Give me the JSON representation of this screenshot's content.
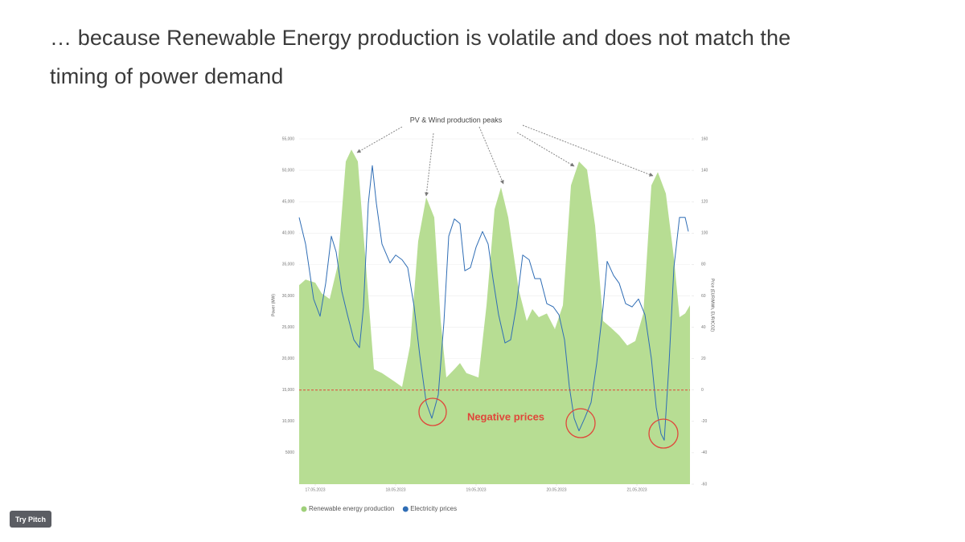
{
  "slide": {
    "heading": [
      "… because Renewable Energy production is volatile and does not match the",
      "timing of power demand"
    ],
    "button": "Try Pitch"
  },
  "chart_data": {
    "type": "combo",
    "xticks": [
      {
        "value": 0,
        "label": "17.05.2023"
      },
      {
        "value": 1,
        "label": "18.05.2023"
      },
      {
        "value": 2,
        "label": "19.05.2023"
      },
      {
        "value": 3,
        "label": "20.05.2023"
      },
      {
        "value": 4,
        "label": "21.05.2023"
      }
    ],
    "xlim": [
      -0.2,
      4.66
    ],
    "ylabel": "Power (MW)",
    "y2label": "Price (EUR/MWh, EUR/tCO2)",
    "ylim": [
      0,
      55000
    ],
    "yticks": [
      5000,
      {
        "value": 10000,
        "label": "10,000"
      },
      {
        "value": 15000,
        "label": "15,000"
      },
      {
        "value": 20000,
        "label": "20,000"
      },
      {
        "value": 25000,
        "label": "25,000"
      },
      {
        "value": 30000,
        "label": "30,000"
      },
      {
        "value": 35000,
        "label": "35,000"
      },
      {
        "value": 40000,
        "label": "40,000"
      },
      {
        "value": 45000,
        "label": "45,000"
      },
      {
        "value": 50000,
        "label": "50,000"
      },
      {
        "value": 55000,
        "label": "55,000"
      }
    ],
    "y2lim": [
      -60,
      160
    ],
    "y2ticks": [
      -60,
      -40,
      -20,
      0,
      20,
      40,
      60,
      80,
      100,
      120,
      140,
      160
    ],
    "grid": true,
    "series": [
      {
        "name": "Renewable energy production",
        "type": "area",
        "color": "#b7dd93",
        "legend_color": "#9fd07a",
        "x": [
          -0.2,
          -0.12,
          0,
          0.08,
          0.18,
          0.28,
          0.38,
          0.45,
          0.53,
          0.63,
          0.73,
          0.83,
          0.98,
          1.08,
          1.18,
          1.28,
          1.38,
          1.48,
          1.56,
          1.63,
          1.73,
          1.8,
          1.88,
          2.03,
          2.13,
          2.23,
          2.31,
          2.4,
          2.53,
          2.63,
          2.7,
          2.78,
          2.88,
          2.98,
          3.08,
          3.18,
          3.28,
          3.38,
          3.48,
          3.58,
          3.68,
          3.78,
          3.88,
          3.98,
          4.08,
          4.18,
          4.26,
          4.36,
          4.46,
          4.53,
          4.6,
          4.66
        ],
        "values": [
          31700,
          32600,
          32100,
          30400,
          29500,
          34900,
          51400,
          53300,
          51400,
          34900,
          18300,
          17700,
          16400,
          15500,
          22100,
          38700,
          45700,
          42500,
          26000,
          17000,
          18300,
          19300,
          17700,
          17000,
          28500,
          43800,
          47300,
          42500,
          31000,
          26000,
          27900,
          26600,
          27200,
          24700,
          28500,
          47600,
          51400,
          50100,
          41200,
          26000,
          24900,
          23700,
          22100,
          22800,
          27200,
          47600,
          49700,
          46300,
          36100,
          26600,
          27200,
          28500
        ]
      },
      {
        "name": "Electricity prices",
        "type": "line",
        "axis": "y2",
        "color": "#2f6db5",
        "x": [
          -0.2,
          -0.12,
          -0.02,
          0.06,
          0.13,
          0.2,
          0.26,
          0.33,
          0.4,
          0.48,
          0.55,
          0.6,
          0.66,
          0.71,
          0.76,
          0.83,
          0.93,
          1.0,
          1.08,
          1.15,
          1.23,
          1.3,
          1.38,
          1.45,
          1.53,
          1.6,
          1.66,
          1.73,
          1.8,
          1.86,
          1.93,
          2.0,
          2.08,
          2.15,
          2.21,
          2.28,
          2.36,
          2.43,
          2.5,
          2.58,
          2.66,
          2.73,
          2.8,
          2.88,
          2.96,
          3.03,
          3.1,
          3.16,
          3.22,
          3.28,
          3.35,
          3.43,
          3.5,
          3.58,
          3.63,
          3.71,
          3.78,
          3.86,
          3.94,
          4.02,
          4.1,
          4.18,
          4.24,
          4.3,
          4.34,
          4.4,
          4.46,
          4.53,
          4.6,
          4.64
        ],
        "values": [
          110,
          93,
          58,
          47,
          68,
          98,
          88,
          63,
          48,
          32,
          27,
          53,
          119,
          143,
          119,
          93,
          81,
          86,
          83,
          78,
          53,
          22,
          -8,
          -18,
          -3,
          43,
          98,
          109,
          106,
          76,
          78,
          91,
          101,
          93,
          71,
          48,
          30,
          32,
          53,
          86,
          83,
          71,
          71,
          55,
          53,
          48,
          32,
          2,
          -18,
          -26,
          -18,
          -8,
          17,
          53,
          82,
          73,
          68,
          55,
          53,
          58,
          48,
          20,
          -11,
          -28,
          -32,
          17,
          78,
          110,
          110,
          101
        ]
      }
    ],
    "reference_line": {
      "axis": "y2",
      "value": 0,
      "color": "#e0463a"
    },
    "annotations": [
      "PV & Wind production peaks",
      "Negative prices"
    ]
  }
}
